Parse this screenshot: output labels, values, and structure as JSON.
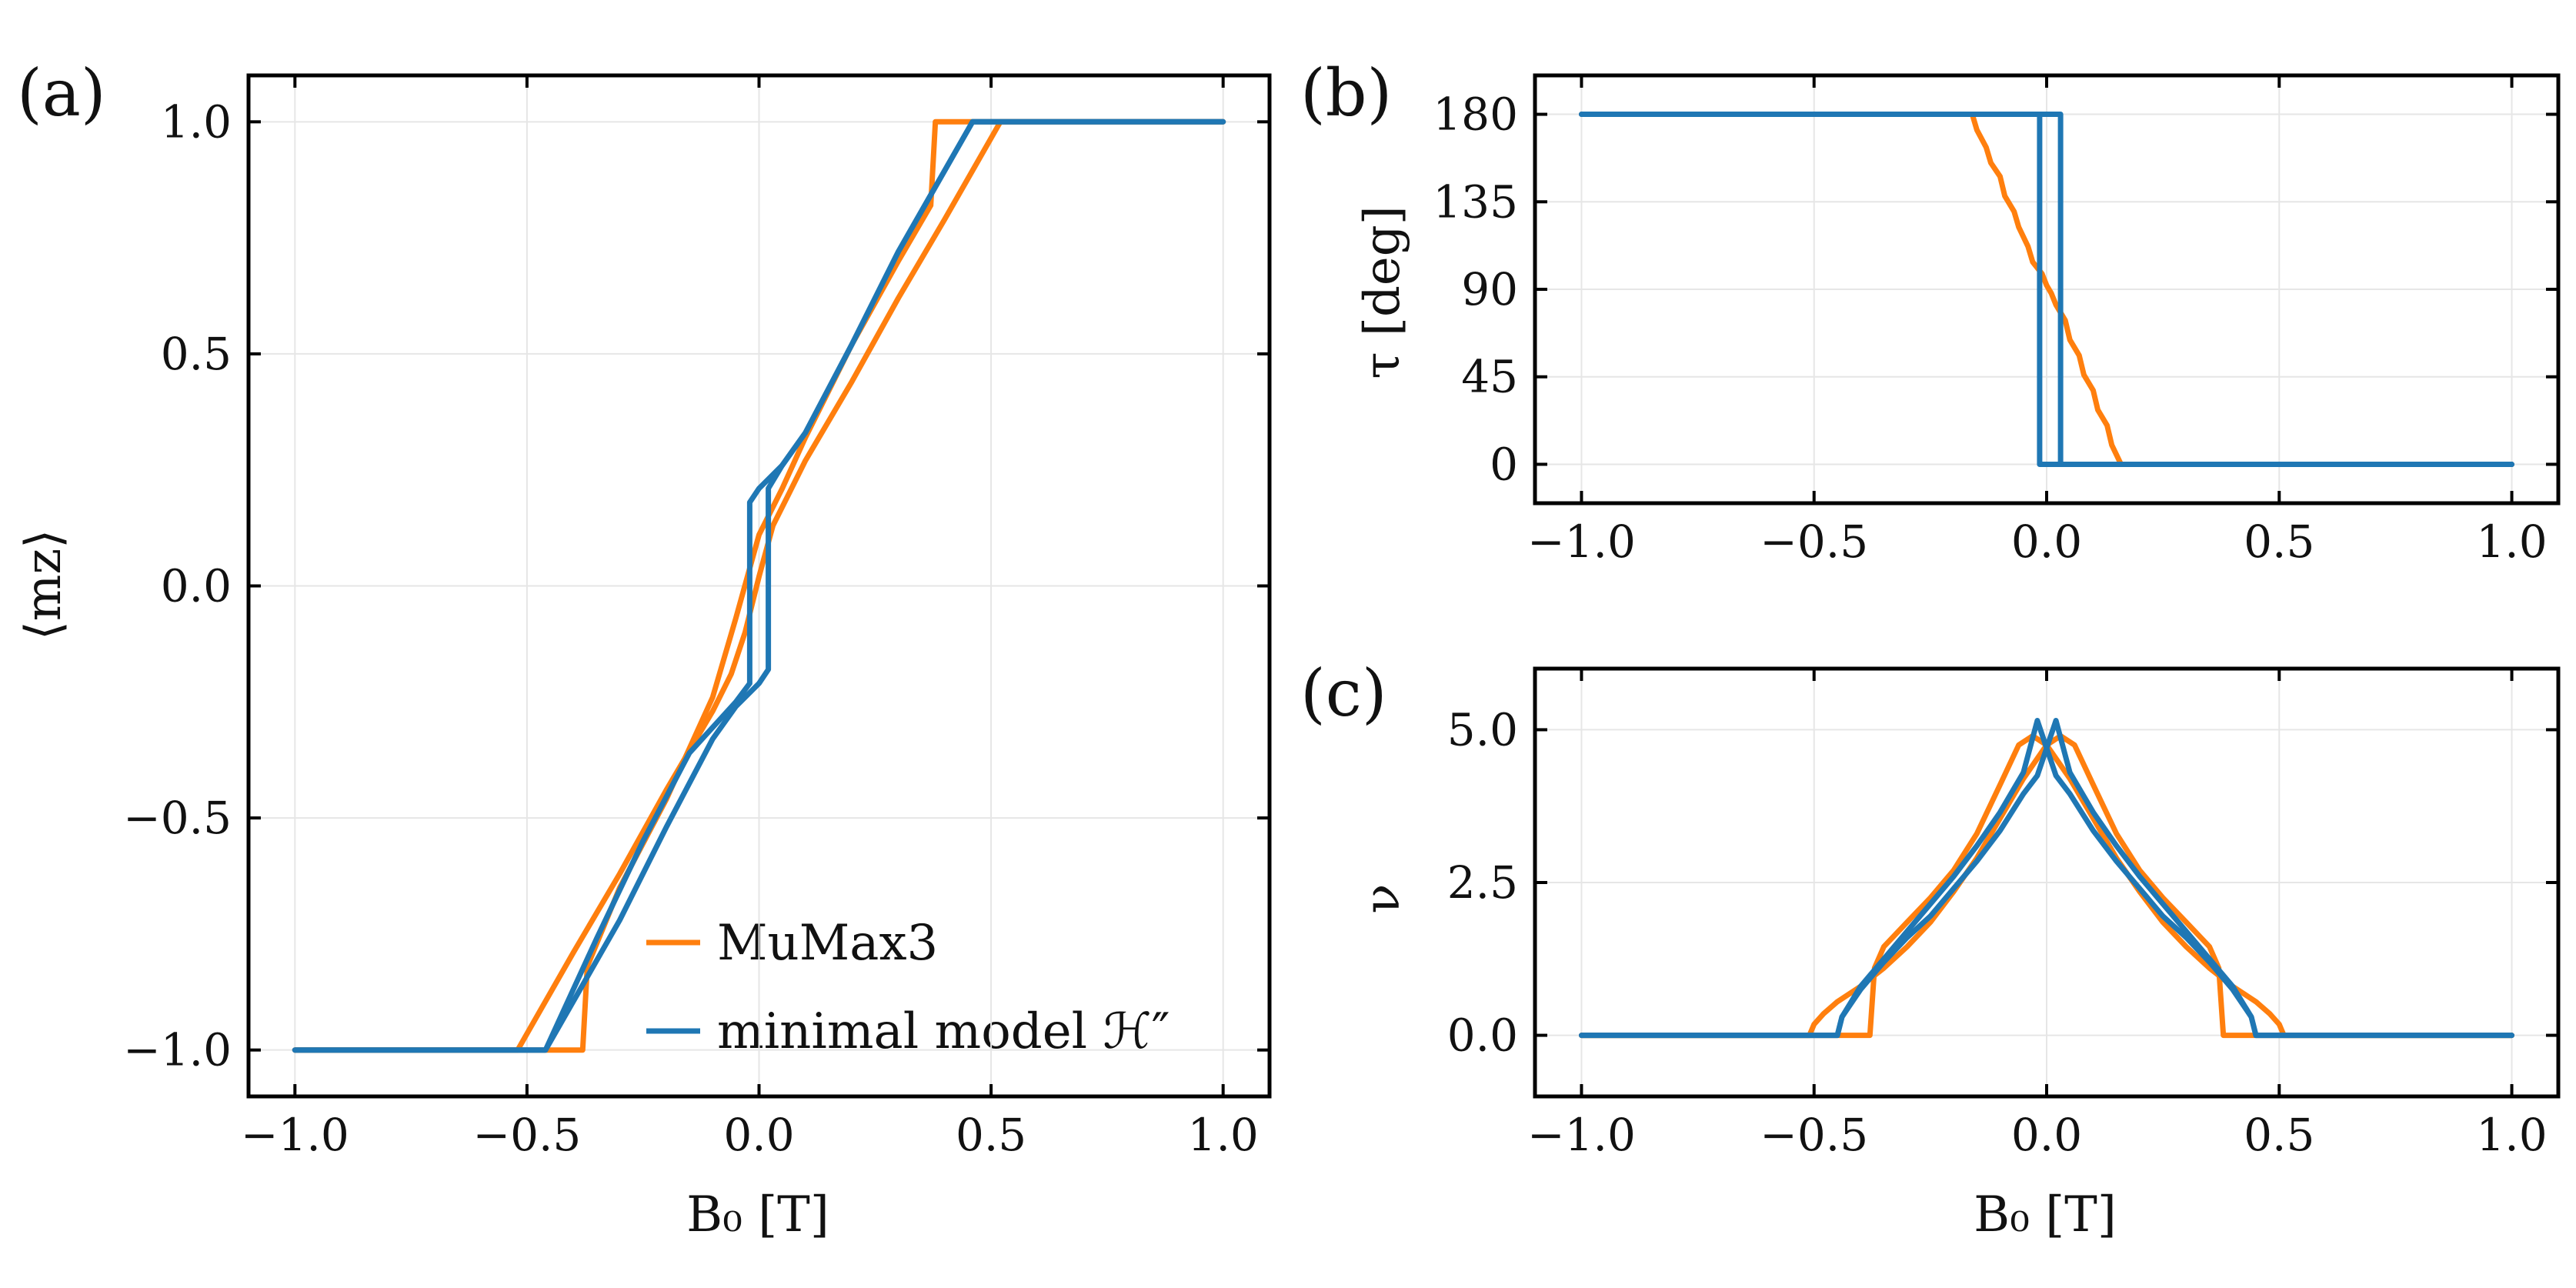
{
  "colors": {
    "mumax": "#ff7f0e",
    "model": "#1f77b4",
    "grid": "#e6e6e6",
    "axis": "#000000"
  },
  "legend": {
    "entries": [
      {
        "label": "MuMax3",
        "series": "mumax"
      },
      {
        "label": "minimal model ℋ″",
        "series": "model"
      }
    ]
  },
  "chart_data": [
    {
      "id": "a",
      "panel_label": "(a)",
      "type": "line",
      "xlabel": "B₀ [T]",
      "ylabel": "⟨mᴢ⟩",
      "xlim": [
        -1.1,
        1.1
      ],
      "ylim": [
        -1.1,
        1.1
      ],
      "xticks": [
        -1.0,
        -0.5,
        0.0,
        0.5,
        1.0
      ],
      "xtick_labels": [
        "−1.0",
        "−0.5",
        "0.0",
        "0.5",
        "1.0"
      ],
      "yticks": [
        -1.0,
        -0.5,
        0.0,
        0.5,
        1.0
      ],
      "ytick_labels": [
        "−1.0",
        "−0.5",
        "0.0",
        "0.5",
        "1.0"
      ],
      "grid": true,
      "legend_position": "lower-right",
      "series": [
        {
          "name": "MuMax3",
          "color_key": "mumax",
          "x": [
            -1.0,
            -0.52,
            -0.4,
            -0.3,
            -0.2,
            -0.1,
            -0.06,
            -0.03,
            0.0,
            0.03,
            0.06,
            0.1,
            0.2,
            0.3,
            0.4,
            0.52,
            1.0
          ],
          "y": [
            -1.0,
            -1.0,
            -0.79,
            -0.62,
            -0.44,
            -0.27,
            -0.19,
            -0.1,
            0.02,
            0.13,
            0.19,
            0.27,
            0.44,
            0.62,
            0.79,
            1.0,
            1.0
          ]
        },
        {
          "name": "MuMax3",
          "color_key": "mumax",
          "x": [
            1.0,
            0.38,
            0.37,
            0.3,
            0.2,
            0.1,
            0.05,
            0.0,
            -0.05,
            -0.1,
            -0.2,
            -0.3,
            -0.37,
            -0.38,
            -1.0
          ],
          "y": [
            1.0,
            1.0,
            0.82,
            0.7,
            0.52,
            0.32,
            0.21,
            0.11,
            -0.07,
            -0.24,
            -0.46,
            -0.65,
            -0.82,
            -1.0,
            -1.0
          ]
        },
        {
          "name": "minimal model",
          "color_key": "model",
          "x": [
            -1.0,
            -0.46,
            -0.35,
            -0.25,
            -0.15,
            -0.05,
            -0.02,
            -0.02,
            0.0,
            0.05,
            0.1,
            0.2,
            0.3,
            0.46,
            1.0
          ],
          "y": [
            -1.0,
            -1.0,
            -0.76,
            -0.55,
            -0.36,
            -0.25,
            -0.21,
            0.18,
            0.21,
            0.26,
            0.33,
            0.52,
            0.72,
            1.0,
            1.0
          ]
        },
        {
          "name": "minimal model",
          "color_key": "model",
          "x": [
            1.0,
            0.46,
            0.3,
            0.2,
            0.1,
            0.05,
            0.02,
            0.02,
            0.0,
            -0.05,
            -0.1,
            -0.2,
            -0.3,
            -0.46,
            -1.0
          ],
          "y": [
            1.0,
            1.0,
            0.72,
            0.52,
            0.33,
            0.26,
            0.21,
            -0.18,
            -0.21,
            -0.26,
            -0.33,
            -0.52,
            -0.72,
            -1.0,
            -1.0
          ]
        }
      ]
    },
    {
      "id": "b",
      "panel_label": "(b)",
      "type": "line",
      "xlabel": "",
      "ylabel": "τ [deg]",
      "xlim": [
        -1.1,
        1.1
      ],
      "ylim": [
        -20,
        200
      ],
      "xticks": [
        -1.0,
        -0.5,
        0.0,
        0.5,
        1.0
      ],
      "xtick_labels": [
        "−1.0",
        "−0.5",
        "0.0",
        "0.5",
        "1.0"
      ],
      "yticks": [
        0,
        45,
        90,
        135,
        180
      ],
      "ytick_labels": [
        "0",
        "45",
        "90",
        "135",
        "180"
      ],
      "grid": true,
      "series": [
        {
          "name": "MuMax3",
          "color_key": "mumax",
          "x": [
            -1.0,
            -0.16,
            -0.15,
            -0.13,
            -0.12,
            -0.1,
            -0.09,
            -0.07,
            -0.06,
            -0.04,
            -0.03,
            -0.01,
            0.0,
            0.01,
            0.02,
            0.04,
            0.05,
            0.07,
            0.08,
            0.1,
            0.11,
            0.13,
            0.14,
            0.16,
            1.0
          ],
          "y": [
            180,
            180,
            172,
            163,
            155,
            148,
            138,
            130,
            122,
            112,
            104,
            98,
            92,
            88,
            82,
            74,
            64,
            56,
            46,
            38,
            28,
            20,
            10,
            0,
            0
          ]
        },
        {
          "name": "minimal model",
          "color_key": "model",
          "x": [
            -1.0,
            -0.015,
            -0.015,
            1.0
          ],
          "y": [
            180,
            180,
            0,
            0
          ]
        },
        {
          "name": "minimal model",
          "color_key": "model",
          "x": [
            1.0,
            0.03,
            0.03,
            -1.0
          ],
          "y": [
            0,
            0,
            180,
            180
          ]
        }
      ]
    },
    {
      "id": "c",
      "panel_label": "(c)",
      "type": "line",
      "xlabel": "B₀ [T]",
      "ylabel": "ν",
      "xlim": [
        -1.1,
        1.1
      ],
      "ylim": [
        -1.0,
        6.0
      ],
      "xticks": [
        -1.0,
        -0.5,
        0.0,
        0.5,
        1.0
      ],
      "xtick_labels": [
        "−1.0",
        "−0.5",
        "0.0",
        "0.5",
        "1.0"
      ],
      "yticks": [
        0.0,
        2.5,
        5.0
      ],
      "ytick_labels": [
        "0.0",
        "2.5",
        "5.0"
      ],
      "grid": true,
      "series": [
        {
          "name": "MuMax3",
          "color_key": "mumax",
          "x": [
            -1.0,
            -0.51,
            -0.5,
            -0.48,
            -0.45,
            -0.4,
            -0.35,
            -0.3,
            -0.25,
            -0.2,
            -0.15,
            -0.1,
            -0.05,
            0.0,
            0.03,
            0.06,
            0.1,
            0.15,
            0.2,
            0.25,
            0.3,
            0.35,
            0.37,
            0.38,
            1.0
          ],
          "y": [
            0.0,
            0.0,
            0.18,
            0.35,
            0.55,
            0.8,
            1.1,
            1.45,
            1.85,
            2.35,
            2.9,
            3.55,
            4.2,
            4.75,
            4.9,
            4.75,
            4.1,
            3.3,
            2.7,
            2.25,
            1.85,
            1.45,
            1.1,
            0.0,
            0.0
          ]
        },
        {
          "name": "MuMax3",
          "color_key": "mumax",
          "x": [
            1.0,
            0.51,
            0.5,
            0.48,
            0.45,
            0.4,
            0.35,
            0.3,
            0.25,
            0.2,
            0.15,
            0.1,
            0.05,
            0.0,
            -0.03,
            -0.06,
            -0.1,
            -0.15,
            -0.2,
            -0.25,
            -0.3,
            -0.35,
            -0.37,
            -0.38,
            -1.0
          ],
          "y": [
            0.0,
            0.0,
            0.18,
            0.35,
            0.55,
            0.8,
            1.1,
            1.45,
            1.85,
            2.35,
            2.9,
            3.55,
            4.2,
            4.75,
            4.9,
            4.75,
            4.1,
            3.3,
            2.7,
            2.25,
            1.85,
            1.45,
            1.1,
            0.0,
            0.0
          ]
        },
        {
          "name": "minimal model",
          "color_key": "model",
          "x": [
            -1.0,
            -0.45,
            -0.44,
            -0.42,
            -0.4,
            -0.35,
            -0.3,
            -0.25,
            -0.2,
            -0.15,
            -0.1,
            -0.05,
            -0.02,
            0.0,
            0.02,
            0.05,
            0.1,
            0.15,
            0.2,
            0.25,
            0.3,
            0.35,
            0.4,
            0.44,
            0.45,
            1.0
          ],
          "y": [
            0.0,
            0.0,
            0.3,
            0.55,
            0.8,
            1.25,
            1.7,
            2.15,
            2.6,
            3.1,
            3.65,
            4.3,
            5.15,
            4.7,
            4.25,
            3.95,
            3.35,
            2.85,
            2.4,
            1.95,
            1.6,
            1.2,
            0.75,
            0.3,
            0.0,
            0.0
          ]
        },
        {
          "name": "minimal model",
          "color_key": "model",
          "x": [
            1.0,
            0.45,
            0.44,
            0.42,
            0.4,
            0.35,
            0.3,
            0.25,
            0.2,
            0.15,
            0.1,
            0.05,
            0.02,
            0.0,
            -0.02,
            -0.05,
            -0.1,
            -0.15,
            -0.2,
            -0.25,
            -0.3,
            -0.35,
            -0.4,
            -0.44,
            -0.45,
            -1.0
          ],
          "y": [
            0.0,
            0.0,
            0.3,
            0.55,
            0.8,
            1.25,
            1.7,
            2.15,
            2.6,
            3.1,
            3.65,
            4.3,
            5.15,
            4.7,
            4.25,
            3.95,
            3.35,
            2.85,
            2.4,
            1.95,
            1.6,
            1.2,
            0.75,
            0.3,
            0.0,
            0.0
          ]
        }
      ]
    }
  ]
}
